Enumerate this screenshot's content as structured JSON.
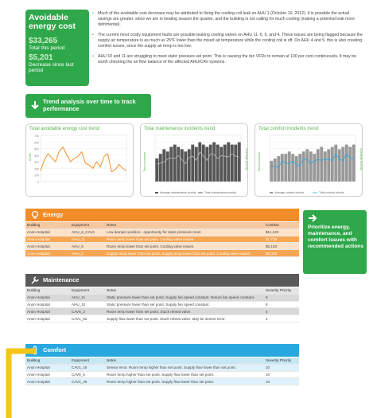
{
  "summary": {
    "title": "Avoidable energy cost",
    "total_value": "$33,265",
    "total_label": "Total this period",
    "decrease_value": "$5,201",
    "decrease_label": "Decrease since last period"
  },
  "bullets": [
    "Much of the avoidable cost decrease may be attributed to fixing the cooling coil leak on AHU 1 (October 10, 2012). It is possible the actual savings are greater, since we are in heating season the quarter, and the building is not calling for much cooling (making a potential leak more detrimental).",
    "The current most costly equipment faults are possible leaking cooling valves on AHU 11, 6, 5, and 4. These issues are being flagged because the supply air temperature is as much as 25°F lower than the mixed air temperature while the cooling coil is off. On AHU 4 and 5, this is also creating comfort issues, since the supply air temp is too low.",
    "AHU 10 and 11 are struggling to meet static pressure set point. This is causing the fan VFDs to remain at 100 per cent continuously. It may be worth checking the air flow balance of the affected AHU/CAV systems."
  ],
  "trend": {
    "label": "Trend analysis over time to track performance"
  },
  "charts": {
    "energy": {
      "title": "Total avoidable energy cost trend",
      "ylabel": "Cost"
    },
    "maintenance": {
      "title": "Total maintenance incidents trend",
      "ylabel": "Total incidents",
      "ylabel2": "Average priority",
      "legend1": "Average maintenance priority",
      "legend2": "Total maintenance priority"
    },
    "comfort": {
      "title": "Total comfort incidents trend",
      "ylabel": "Total incidents",
      "ylabel2": "Average priority",
      "legend1": "Average comfort priority",
      "legend2": "Total comfort priority"
    }
  },
  "chart_data": [
    {
      "type": "line",
      "title": "Total avoidable energy cost trend",
      "ylabel": "Cost",
      "ylim": [
        0,
        700
      ],
      "yticks": [
        "700",
        "600",
        "500",
        "400",
        "300",
        "200",
        "100",
        "0"
      ],
      "series": [
        {
          "values": [
            160,
            330,
            420,
            360,
            300,
            460,
            520,
            410,
            300,
            350,
            380,
            450,
            280,
            250,
            200,
            300,
            220,
            380,
            420,
            150,
            180,
            260,
            200,
            160
          ]
        }
      ]
    },
    {
      "type": "bar",
      "title": "Total maintenance incidents trend",
      "ylabel": "Total incidents",
      "series": [
        {
          "values": [
            10,
            12,
            14,
            13,
            15,
            16,
            15,
            14,
            13,
            14,
            16,
            15,
            17,
            16,
            15,
            16,
            17,
            16,
            15,
            16,
            17,
            16,
            16,
            17
          ]
        }
      ]
    },
    {
      "type": "bar",
      "title": "Total comfort incidents trend",
      "ylabel": "Total incidents",
      "series": [
        {
          "values": [
            9,
            10,
            11,
            12,
            12,
            13,
            12,
            11,
            12,
            13,
            14,
            13,
            12,
            14,
            15,
            13,
            14,
            15,
            16,
            14,
            15,
            16,
            15,
            16
          ]
        }
      ]
    }
  ],
  "priority_box": {
    "label": "Prioritize energy, maintenance, and comfort issues with recommended actions"
  },
  "energy": {
    "title": "Energy",
    "headers": [
      "Building",
      "Equipment",
      "Notes",
      "Cost/Da"
    ],
    "rows": [
      [
        "Anon Hospital",
        "AHU_6_CAVs",
        "Low damper position - opportunity for static pressure reset.",
        "$11,120"
      ],
      [
        "Anon Hospital",
        "AHU_11",
        "Room temp lower than set point. Cooling valve issues.",
        "$7,719"
      ],
      [
        "Anon Hospital",
        "AHU_6",
        "Room temp lower than set point. Cooling valve issues.",
        "$6,163"
      ],
      [
        "Anon Hospital",
        "AHU_5",
        "Supply temp lower than set point. Supply temp lower than set point. Cooling valve issues.",
        "$5,029"
      ]
    ]
  },
  "maintenance": {
    "title": "Maintenance",
    "headers": [
      "Building",
      "Equipment",
      "Notes",
      "Severity Priority"
    ],
    "rows": [
      [
        "Anon Hospital",
        "AHU_11",
        "Static pressure lower than set point. Supply fan speed constant. Return fan speed constant.",
        "8"
      ],
      [
        "Anon Hospital",
        "AHU_10",
        "Static pressure lower than set point. Supply fan speed constant.",
        "8"
      ],
      [
        "Anon Hospital",
        "CAV8_2",
        "Room temp lower than set point. Stuck reheat valve.",
        "4"
      ],
      [
        "Anon Hospital",
        "CAV1_62",
        "Supply flow lower than set point. Stuck reheat valve. May be sensor error.",
        "4"
      ]
    ]
  },
  "comfort": {
    "title": "Comfort",
    "headers": [
      "Building",
      "Equipment",
      "Notes",
      "Severity Priority"
    ],
    "rows": [
      [
        "Anon Hospital",
        "CAV1_16",
        "Sensor error. Room temp higher than set point. Supply flow lower than set point.",
        "10"
      ],
      [
        "Anon Hospital",
        "CAV8_5",
        "Room temp higher than set point. Supply flow lower than set point.",
        "10"
      ],
      [
        "Anon Hospital",
        "CAV4_45",
        "Room temp higher than set point. Supply flow lower than set point.",
        "10"
      ]
    ]
  },
  "colors": {
    "green": "#2ea84a",
    "orange": "#f28c28",
    "gray": "#5a5a5a",
    "blue": "#29a8df",
    "yellow": "#f5c518"
  }
}
